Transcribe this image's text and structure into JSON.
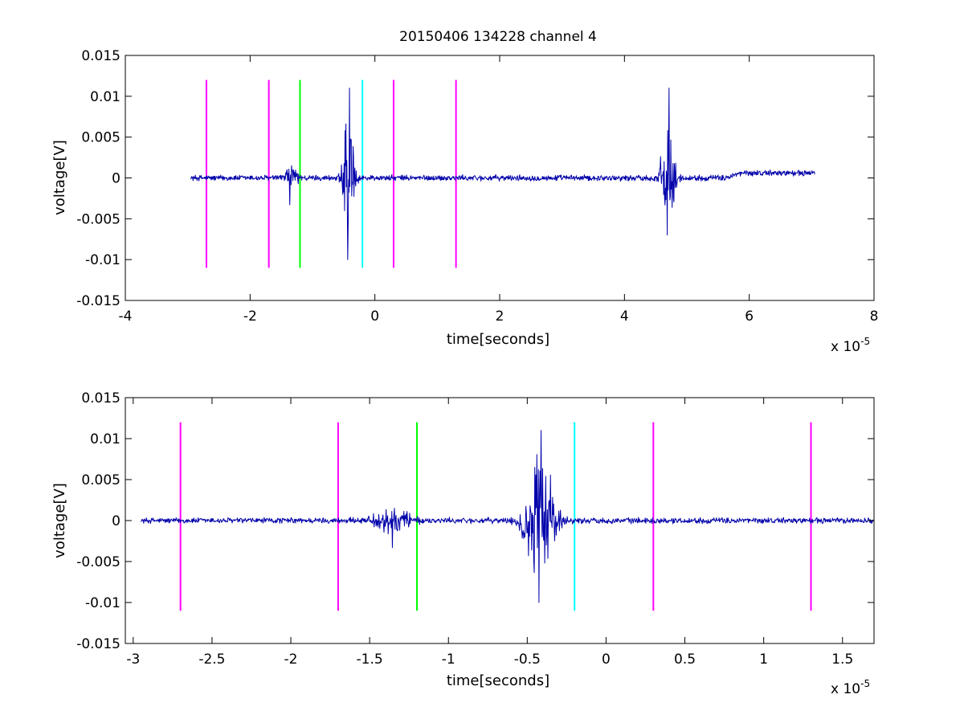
{
  "figure": {
    "background": "#ffffff"
  },
  "chart_data": [
    {
      "type": "line",
      "title": "20150406 134228 channel 4",
      "xlabel": "time[seconds]",
      "ylabel": "voltage[V]",
      "x_exponent_label": "x 10",
      "x_exponent": "-5",
      "xlim": [
        -4e-05,
        8e-05
      ],
      "ylim": [
        -0.015,
        0.015
      ],
      "xticks": [
        -4e-05,
        -2e-05,
        0,
        2e-05,
        4e-05,
        6e-05,
        8e-05
      ],
      "xtick_labels": [
        "-4",
        "-2",
        "0",
        "2",
        "4",
        "6",
        "8"
      ],
      "yticks": [
        -0.015,
        -0.01,
        -0.005,
        0,
        0.005,
        0.01,
        0.015
      ],
      "ytick_labels": [
        "-0.015",
        "-0.01",
        "-0.005",
        "0",
        "0.005",
        "0.01",
        "0.015"
      ],
      "signal": {
        "color": "#0000aa",
        "x_start": -2.95e-05,
        "x_end": 7.05e-05,
        "baseline_noise": 0.0003,
        "bursts": [
          {
            "center": -1.35e-05,
            "width": 1.2e-06,
            "amplitude": 0.0016,
            "min": -0.0033,
            "max": 0.0015
          },
          {
            "center": -4.2e-06,
            "width": 1e-06,
            "amplitude": 0.006,
            "min": -0.01,
            "max": 0.011
          },
          {
            "center": 4.7e-05,
            "width": 1.2e-06,
            "amplitude": 0.005,
            "min": -0.007,
            "max": 0.011
          }
        ],
        "drift": [
          {
            "from": 5.6e-05,
            "to": 7.05e-05,
            "offset": 0.0006
          }
        ]
      },
      "markers": [
        {
          "x": -2.7e-05,
          "color": "#ff00ff"
        },
        {
          "x": -1.7e-05,
          "color": "#ff00ff"
        },
        {
          "x": -1.2e-05,
          "color": "#00ff00"
        },
        {
          "x": -2e-06,
          "color": "#00ffff"
        },
        {
          "x": 3e-06,
          "color": "#ff00ff"
        },
        {
          "x": 1.3e-05,
          "color": "#ff00ff"
        }
      ],
      "marker_range": [
        -0.011,
        0.012
      ]
    },
    {
      "type": "line",
      "title": "",
      "xlabel": "time[seconds]",
      "ylabel": "voltage[V]",
      "x_exponent_label": "x 10",
      "x_exponent": "-5",
      "xlim": [
        -3.05e-05,
        1.7e-05
      ],
      "ylim": [
        -0.015,
        0.015
      ],
      "xticks": [
        -3e-05,
        -2.5e-05,
        -2e-05,
        -1.5e-05,
        -1e-05,
        -5e-06,
        0,
        5e-06,
        1e-05,
        1.5e-05
      ],
      "xtick_labels": [
        "-3",
        "-2.5",
        "-2",
        "-1.5",
        "-1",
        "-0.5",
        "0",
        "0.5",
        "1",
        "1.5"
      ],
      "yticks": [
        -0.015,
        -0.01,
        -0.005,
        0,
        0.005,
        0.01,
        0.015
      ],
      "ytick_labels": [
        "-0.015",
        "-0.01",
        "-0.005",
        "0",
        "0.005",
        "0.01",
        "0.015"
      ],
      "signal": {
        "color": "#0000aa",
        "x_start": -2.95e-05,
        "x_end": 1.7e-05,
        "baseline_noise": 0.0003,
        "bursts": [
          {
            "center": -1.35e-05,
            "width": 1.2e-06,
            "amplitude": 0.0016,
            "min": -0.0033,
            "max": 0.0015
          },
          {
            "center": -4.2e-06,
            "width": 1e-06,
            "amplitude": 0.006,
            "min": -0.01,
            "max": 0.011
          }
        ],
        "drift": []
      },
      "markers": [
        {
          "x": -2.7e-05,
          "color": "#ff00ff"
        },
        {
          "x": -1.7e-05,
          "color": "#ff00ff"
        },
        {
          "x": -1.2e-05,
          "color": "#00ff00"
        },
        {
          "x": -2e-06,
          "color": "#00ffff"
        },
        {
          "x": 3e-06,
          "color": "#ff00ff"
        },
        {
          "x": 1.3e-05,
          "color": "#ff00ff"
        }
      ],
      "marker_range": [
        -0.011,
        0.012
      ]
    }
  ]
}
